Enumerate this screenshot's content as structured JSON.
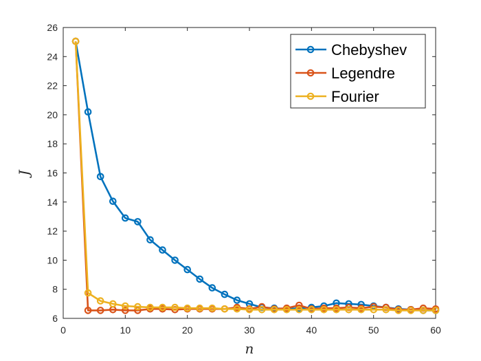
{
  "chart_data": {
    "type": "line",
    "title": "",
    "xlabel": "n",
    "ylabel": "J",
    "xlim": [
      0,
      60
    ],
    "ylim": [
      6,
      26
    ],
    "xticks": [
      "0",
      "10",
      "20",
      "30",
      "40",
      "50",
      "60"
    ],
    "yticks": [
      "6",
      "8",
      "10",
      "12",
      "14",
      "16",
      "18",
      "20",
      "22",
      "24",
      "26"
    ],
    "grid": false,
    "legend_position": "top-right",
    "marker": "circle",
    "x": [
      2,
      4,
      6,
      8,
      10,
      12,
      14,
      16,
      18,
      20,
      22,
      24,
      26,
      28,
      30,
      32,
      34,
      36,
      38,
      40,
      42,
      44,
      46,
      48,
      50,
      52,
      54,
      56,
      58,
      60
    ],
    "series": [
      {
        "name": "Chebyshev",
        "color": "#0072BD",
        "values": [
          25.05,
          20.2,
          15.75,
          14.05,
          12.9,
          12.65,
          11.4,
          10.7,
          10.0,
          9.35,
          8.7,
          8.1,
          7.65,
          7.25,
          7.0,
          6.75,
          6.7,
          6.65,
          6.7,
          6.75,
          6.85,
          7.05,
          7.0,
          6.95,
          6.85,
          6.75,
          6.65,
          6.6,
          6.55,
          6.55
        ]
      },
      {
        "name": "Legendre",
        "color": "#D95319",
        "values": [
          25.05,
          6.55,
          6.55,
          6.6,
          6.55,
          6.55,
          6.65,
          6.65,
          6.6,
          6.65,
          6.65,
          6.65,
          6.65,
          6.75,
          6.65,
          6.8,
          6.65,
          6.7,
          6.9,
          6.65,
          6.7,
          6.7,
          6.75,
          6.7,
          6.8,
          6.75,
          6.6,
          6.6,
          6.7,
          6.65
        ]
      },
      {
        "name": "Fourier",
        "color": "#EDB120",
        "values": [
          25.05,
          7.75,
          7.2,
          7.0,
          6.85,
          6.8,
          6.75,
          6.75,
          6.75,
          6.7,
          6.7,
          6.7,
          6.65,
          6.65,
          6.6,
          6.6,
          6.6,
          6.6,
          6.6,
          6.6,
          6.6,
          6.6,
          6.6,
          6.6,
          6.6,
          6.6,
          6.55,
          6.55,
          6.55,
          6.55
        ]
      }
    ]
  }
}
